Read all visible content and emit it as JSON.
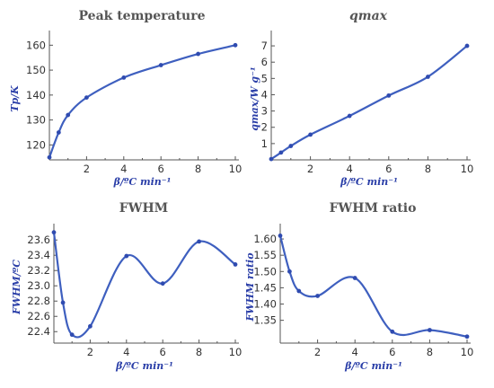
{
  "chart_data": [
    {
      "type": "line",
      "title": "Peak temperature",
      "title_italic": false,
      "xlabel": "β/ºC min⁻¹",
      "ylabel": "Tp/K",
      "xlim": [
        0,
        10
      ],
      "ylim": [
        114,
        163
      ],
      "xticks": [
        2,
        4,
        6,
        8,
        10
      ],
      "yticks": [
        120,
        130,
        140,
        150,
        160
      ],
      "xtick_labels": [
        "2",
        "4",
        "6",
        "8",
        "10"
      ],
      "ytick_labels": [
        "120",
        "130",
        "140",
        "150",
        "160"
      ],
      "x": [
        0,
        0.5,
        1,
        2,
        4,
        6,
        8,
        10
      ],
      "y": [
        115,
        125,
        132,
        139,
        147,
        152,
        156.5,
        160
      ]
    },
    {
      "type": "line",
      "title": "qmax",
      "title_italic": true,
      "xlabel": "β/ºC min⁻¹",
      "ylabel": "qmax/W g⁻¹",
      "xlim": [
        0,
        10
      ],
      "ylim": [
        0,
        7.5
      ],
      "xticks": [
        2,
        4,
        6,
        8,
        10
      ],
      "yticks": [
        1,
        2,
        3,
        4,
        5,
        6,
        7
      ],
      "xtick_labels": [
        "2",
        "4",
        "6",
        "8",
        "10"
      ],
      "ytick_labels": [
        "1",
        "2",
        "3",
        "4",
        "5",
        "6",
        "7"
      ],
      "x": [
        0,
        0.5,
        1,
        2,
        4,
        6,
        8,
        10
      ],
      "y": [
        0.05,
        0.45,
        0.85,
        1.55,
        2.7,
        3.95,
        5.1,
        7.0
      ]
    },
    {
      "type": "line",
      "title": "FWHM",
      "title_italic": false,
      "xlabel": "β/ºC min⁻¹",
      "ylabel": "FWHM/ºC",
      "xlim": [
        0,
        10
      ],
      "ylim": [
        22.25,
        23.72
      ],
      "xticks": [
        2,
        4,
        6,
        8,
        10
      ],
      "yticks": [
        22.4,
        22.6,
        22.8,
        23.0,
        23.2,
        23.4,
        23.6
      ],
      "xtick_labels": [
        "2",
        "4",
        "6",
        "8",
        "10"
      ],
      "ytick_labels": [
        "22.4",
        "22.6",
        "22.8",
        "23.0",
        "23.2",
        "23.4",
        "23.6"
      ],
      "x": [
        0,
        0.5,
        1,
        2,
        4,
        6,
        8,
        10
      ],
      "y": [
        23.7,
        22.78,
        22.36,
        22.47,
        23.39,
        23.03,
        23.58,
        23.28
      ]
    },
    {
      "type": "line",
      "title": "FWHM ratio",
      "title_italic": false,
      "xlabel": "β/ºC min⁻¹",
      "ylabel": "FWHM ratio",
      "xlim": [
        0,
        10
      ],
      "ylim": [
        1.28,
        1.625
      ],
      "xticks": [
        2,
        4,
        6,
        8,
        10
      ],
      "yticks": [
        1.35,
        1.4,
        1.45,
        1.5,
        1.55,
        1.6
      ],
      "xtick_labels": [
        "2",
        "4",
        "6",
        "8",
        "10"
      ],
      "ytick_labels": [
        "1.35",
        "1.40",
        "1.45",
        "1.50",
        "1.55",
        "1.60"
      ],
      "x": [
        0,
        0.5,
        1,
        2,
        4,
        6,
        8,
        10
      ],
      "y": [
        1.61,
        1.5,
        1.44,
        1.425,
        1.48,
        1.315,
        1.32,
        1.3
      ]
    }
  ]
}
